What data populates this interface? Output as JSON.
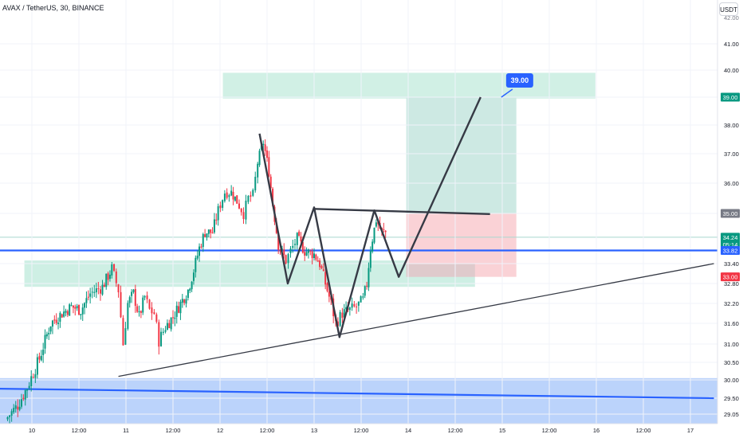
{
  "header": {
    "symbol_title": "AVAX / TetherUS, 30, BINANCE",
    "currency_button": "USDT"
  },
  "colors": {
    "up_candle": "#089981",
    "down_candle": "#f23645",
    "blue_line": "#2962ff",
    "pattern_line": "#363a45",
    "target_zone": "#c8e6c9",
    "demand_zone": "#c5ecdf",
    "support_zone": "#bbd3fb",
    "profit_zone": "#cde9e3",
    "loss_zone": "#fad2d6",
    "badge_green": "#089981",
    "badge_red": "#f23645",
    "badge_blue": "#2962ff",
    "badge_gray": "#787b86"
  },
  "chart_data": {
    "type": "candlestick",
    "title": "AVAX / TetherUS, 30, BINANCE",
    "y_axis": {
      "ticks": [
        "41.00",
        "40.00",
        "39.00",
        "38.00",
        "37.00",
        "36.00",
        "35.00",
        "33.40",
        "32.80",
        "32.20",
        "31.60",
        "31.00",
        "30.50",
        "30.00",
        "29.50",
        "29.05"
      ],
      "top_label": "42.00",
      "min": 28.8,
      "max": 42.2
    },
    "x_axis": {
      "ticks": [
        {
          "label": "10",
          "x": 0.0
        },
        {
          "label": "12:00",
          "x": 0.5
        },
        {
          "label": "11",
          "x": 1.0
        },
        {
          "label": "12:00",
          "x": 1.5
        },
        {
          "label": "12",
          "x": 2.0
        },
        {
          "label": "12:00",
          "x": 2.5
        },
        {
          "label": "13",
          "x": 3.0
        },
        {
          "label": "12:00",
          "x": 3.5
        },
        {
          "label": "14",
          "x": 4.0
        },
        {
          "label": "12:00",
          "x": 4.5
        },
        {
          "label": "15",
          "x": 5.0
        },
        {
          "label": "12:00",
          "x": 5.5
        },
        {
          "label": "16",
          "x": 6.0
        },
        {
          "label": "12:00",
          "x": 6.5
        },
        {
          "label": "17",
          "x": 7.0
        }
      ]
    },
    "price_badges": [
      {
        "label": "39.00",
        "value": 39.0,
        "color_key": "badge_green"
      },
      {
        "label": "35.00",
        "value": 35.0,
        "color_key": "badge_gray"
      },
      {
        "label": "34.24",
        "sub": "05:14",
        "value": 34.24,
        "color_key": "badge_green"
      },
      {
        "label": "33.82",
        "value": 33.82,
        "color_key": "badge_blue"
      },
      {
        "label": "33.00",
        "value": 33.0,
        "color_key": "badge_red"
      }
    ],
    "target_callout": {
      "label": "39.00",
      "anchor": [
        4.77,
        39.0
      ]
    },
    "candle_path": [
      [
        -0.28,
        28.9
      ],
      [
        -0.15,
        29.3
      ],
      [
        -0.05,
        29.8
      ],
      [
        0.08,
        30.6
      ],
      [
        0.2,
        31.6
      ],
      [
        0.32,
        31.9
      ],
      [
        0.42,
        32.1
      ],
      [
        0.52,
        32.0
      ],
      [
        0.62,
        32.5
      ],
      [
        0.75,
        32.7
      ],
      [
        0.85,
        33.25
      ],
      [
        0.92,
        32.6
      ],
      [
        0.97,
        31.0
      ],
      [
        1.02,
        32.2
      ],
      [
        1.08,
        32.5
      ],
      [
        1.14,
        31.8
      ],
      [
        1.2,
        32.4
      ],
      [
        1.25,
        32.0
      ],
      [
        1.3,
        31.9
      ],
      [
        1.35,
        31.1
      ],
      [
        1.42,
        31.5
      ],
      [
        1.5,
        31.8
      ],
      [
        1.58,
        32.2
      ],
      [
        1.66,
        32.6
      ],
      [
        1.72,
        33.2
      ],
      [
        1.78,
        33.9
      ],
      [
        1.84,
        34.4
      ],
      [
        1.92,
        34.4
      ],
      [
        1.98,
        35.1
      ],
      [
        2.05,
        35.7
      ],
      [
        2.12,
        35.7
      ],
      [
        2.18,
        35.4
      ],
      [
        2.25,
        35.0
      ],
      [
        2.3,
        35.5
      ],
      [
        2.35,
        35.6
      ],
      [
        2.4,
        36.7
      ],
      [
        2.46,
        37.4
      ],
      [
        2.52,
        36.4
      ],
      [
        2.56,
        35.3
      ],
      [
        2.62,
        34.0
      ],
      [
        2.7,
        33.5
      ],
      [
        2.75,
        33.8
      ],
      [
        2.82,
        34.2
      ],
      [
        2.9,
        33.8
      ],
      [
        3.0,
        33.7
      ],
      [
        3.06,
        33.4
      ],
      [
        3.12,
        32.8
      ],
      [
        3.18,
        32.2
      ],
      [
        3.23,
        31.6
      ],
      [
        3.3,
        31.9
      ],
      [
        3.38,
        32.0
      ],
      [
        3.45,
        32.1
      ],
      [
        3.52,
        32.3
      ],
      [
        3.56,
        32.8
      ],
      [
        3.6,
        33.9
      ],
      [
        3.66,
        34.8
      ],
      [
        3.72,
        34.4
      ],
      [
        3.76,
        34.4
      ]
    ],
    "annotations": {
      "support_zone": {
        "y_from": 28.7,
        "y_to": 30.05
      },
      "demand_zone": {
        "x_from": -0.08,
        "x_to": 4.71,
        "y_from": 32.7,
        "y_to": 33.5
      },
      "target_zone": {
        "x_from": 2.03,
        "x_to": 5.99,
        "y_from": 38.95,
        "y_to": 39.9
      },
      "long_position": {
        "x_from": 3.98,
        "x_to": 5.15,
        "entry": 35.0,
        "target": 39.0,
        "stop": 33.0
      },
      "entry_mark": {
        "x_from": 3.98,
        "x_to": 4.71,
        "y_from": 33.0,
        "y_to": 33.4
      },
      "horizontal_ray": {
        "y": 33.82
      },
      "trend_lines": [
        {
          "from": [
            0.92,
            30.1
          ],
          "to": [
            7.25,
            33.4
          ]
        },
        {
          "from": [
            -0.4,
            29.76
          ],
          "to": [
            7.25,
            29.5
          ]
        }
      ],
      "pattern_path": [
        [
          2.42,
          37.7
        ],
        [
          2.72,
          32.8
        ],
        [
          3.0,
          35.2
        ],
        [
          3.27,
          31.2
        ],
        [
          3.64,
          35.1
        ],
        [
          3.9,
          33.0
        ],
        [
          4.77,
          39.0
        ]
      ],
      "neckline": {
        "from": [
          3.0,
          35.15
        ],
        "to": [
          4.87,
          34.98
        ]
      }
    }
  }
}
